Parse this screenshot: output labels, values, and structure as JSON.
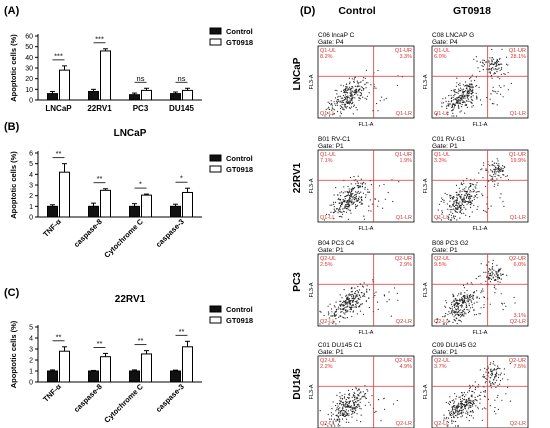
{
  "chart_data": [
    {
      "panel": "(A)",
      "type": "bar",
      "title": "",
      "ylabel": "Apoptotic cells (%)",
      "ylim": [
        0,
        60
      ],
      "yticks": [
        "0",
        "10",
        "20",
        "30",
        "40",
        "50",
        "60"
      ],
      "categories": [
        "LNCaP",
        "22RV1",
        "PC3",
        "DU145"
      ],
      "series": [
        {
          "name": "Control",
          "values": [
            6,
            8,
            5,
            6
          ],
          "errors": [
            2,
            2,
            1.5,
            1.5
          ]
        },
        {
          "name": "GT0918",
          "values": [
            28,
            46,
            9,
            9
          ],
          "errors": [
            4,
            2,
            2,
            2
          ]
        }
      ],
      "significance": [
        "***",
        "***",
        "ns",
        "ns"
      ],
      "legend": "top-right"
    },
    {
      "panel": "(B)",
      "type": "bar",
      "title": "LNCaP",
      "ylabel": "Apoptotic cells (%)",
      "ylim": [
        0,
        6
      ],
      "yticks": [
        "0",
        "1",
        "2",
        "3",
        "4",
        "5",
        "6"
      ],
      "categories": [
        "TNF-α",
        "caspase-8",
        "Cytochrome C",
        "caspase-3"
      ],
      "series": [
        {
          "name": "Control",
          "values": [
            1,
            1,
            1,
            1
          ],
          "errors": [
            0.15,
            0.3,
            0.25,
            0.2
          ]
        },
        {
          "name": "GT0918",
          "values": [
            4.2,
            2.5,
            2.05,
            2.3
          ],
          "errors": [
            0.8,
            0.15,
            0.1,
            0.4
          ]
        }
      ],
      "significance": [
        "**",
        "**",
        "*",
        "*"
      ],
      "legend": "top-right"
    },
    {
      "panel": "(C)",
      "type": "bar",
      "title": "22RV1",
      "ylabel": "Apoptotic cells (%)",
      "ylim": [
        0,
        5
      ],
      "yticks": [
        "0",
        "1",
        "2",
        "3",
        "4",
        "5"
      ],
      "categories": [
        "TNF-α",
        "caspase-8",
        "Cytochrome C",
        "caspase-3"
      ],
      "series": [
        {
          "name": "Control",
          "values": [
            1,
            1,
            1,
            1
          ],
          "errors": [
            0.1,
            0.05,
            0.1,
            0.08
          ]
        },
        {
          "name": "GT0918",
          "values": [
            2.8,
            2.3,
            2.55,
            3.2
          ],
          "errors": [
            0.4,
            0.3,
            0.3,
            0.5
          ]
        }
      ],
      "significance": [
        "**",
        "**",
        "**",
        "**"
      ],
      "legend": "top-right"
    }
  ],
  "flow_panel": {
    "panel": "(D)",
    "columns": [
      "Control",
      "GT0918"
    ],
    "rows": [
      "LNCaP",
      "22RV1",
      "PC3",
      "DU145"
    ],
    "x_axis": "FL1-A",
    "y_axis": "FL3-A",
    "plots": [
      {
        "label": "C06 lncaP C",
        "gate": "Gate: P4",
        "q": [
          "Q1-UL",
          "Q1-UR",
          "Q1-LL",
          "Q1-LR"
        ],
        "ul": "8.2%",
        "ur": "3.3%",
        "ll": "",
        "lr": ""
      },
      {
        "label": "C08 LNCAP G",
        "gate": "Gate: P4",
        "q": [
          "Q1-UL",
          "Q1-UR",
          "Q1-LL",
          "Q1-LR"
        ],
        "ul": "6.0%",
        "ur": "28.1%",
        "ll": "",
        "lr": ""
      },
      {
        "label": "B01 RV-C1",
        "gate": "Gate: P1",
        "q": [
          "Q1-UL",
          "Q1-UR",
          "Q1-LL",
          "Q1-LR"
        ],
        "ul": "7.1%",
        "ur": "1.9%",
        "ll": "",
        "lr": ""
      },
      {
        "label": "C01 RV-G1",
        "gate": "Gate: P1",
        "q": [
          "Q1-UL",
          "Q1-UR",
          "Q1-LL",
          "Q1-LR"
        ],
        "ul": "3.3%",
        "ur": "19.9%",
        "ll": "",
        "lr": ""
      },
      {
        "label": "B04 PC3 C4",
        "gate": "Gate: P1",
        "q": [
          "Q2-UL",
          "Q2-UR",
          "Q2-LL",
          "Q2-LR"
        ],
        "ul": "2.5%",
        "ur": "2.9%",
        "ll": "",
        "lr": ""
      },
      {
        "label": "B08 PC3 G2",
        "gate": "Gate: P1",
        "q": [
          "Q2-UL",
          "Q2-UR",
          "Q2-LL",
          "Q2-LR"
        ],
        "ul": "9.5%",
        "ur": "6.0%",
        "ll": "",
        "lr": "3.1%"
      },
      {
        "label": "C01 DU145 C1",
        "gate": "Gate: P1",
        "q": [
          "Q2-UL",
          "Q2-UR",
          "Q2-LL",
          "Q2-LR"
        ],
        "ul": "2.2%",
        "ur": "4.9%",
        "ll": "",
        "lr": ""
      },
      {
        "label": "C09 DU145 G2",
        "gate": "Gate: P1",
        "q": [
          "Q2-UL",
          "Q2-UR",
          "Q2-LL",
          "Q2-LR"
        ],
        "ul": "3.7%",
        "ur": "7.5%",
        "ll": "",
        "lr": ""
      }
    ]
  }
}
